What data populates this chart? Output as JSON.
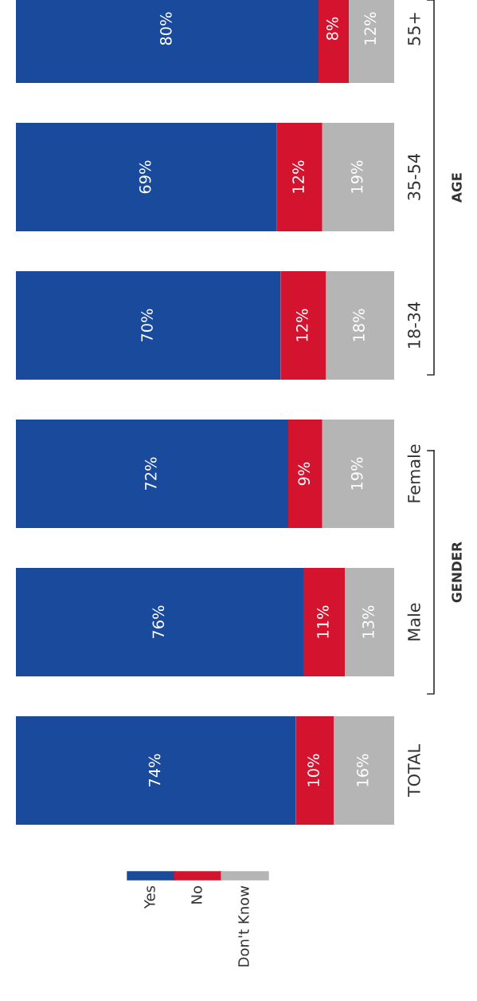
{
  "chart_data": {
    "type": "bar",
    "orientation": "horizontal",
    "stacked": true,
    "categories": [
      "55+",
      "35-54",
      "18-34",
      "Female",
      "Male",
      "TOTAL"
    ],
    "series": [
      {
        "name": "Yes",
        "color": "#1a4a9c",
        "values": [
          80,
          69,
          70,
          72,
          76,
          74
        ],
        "value_labels": [
          "80%",
          "69%",
          "70%",
          "72%",
          "76%",
          "74%"
        ]
      },
      {
        "name": "No",
        "color": "#d4132e",
        "values": [
          8,
          12,
          12,
          9,
          11,
          10
        ],
        "value_labels": [
          "8%",
          "12%",
          "12%",
          "9%",
          "11%",
          "10%"
        ]
      },
      {
        "name": "Don't Know",
        "color": "#b5b5b5",
        "values": [
          12,
          19,
          18,
          19,
          13,
          16
        ],
        "value_labels": [
          "12%",
          "19%",
          "18%",
          "19%",
          "13%",
          "16%"
        ]
      }
    ],
    "xlim": [
      0,
      100
    ],
    "tick_labels": "y",
    "grid": false,
    "legend": "bottom left",
    "annotations": [
      "AGE",
      "GENDER"
    ]
  }
}
